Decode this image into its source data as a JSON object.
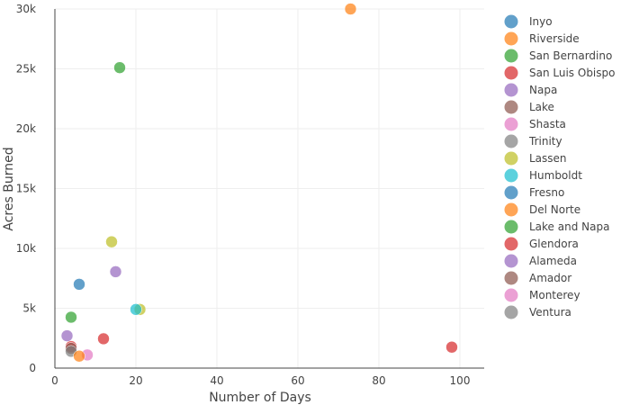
{
  "chart_data": {
    "type": "scatter",
    "xlabel": "Number of Days",
    "ylabel": "Acres Burned",
    "xlim": [
      -3,
      106
    ],
    "ylim": [
      0,
      30000
    ],
    "x_ticks": [
      0,
      20,
      40,
      60,
      80,
      100
    ],
    "y_ticks": [
      0,
      5000,
      10000,
      15000,
      20000,
      25000,
      30000
    ],
    "x_tick_labels": [
      "0",
      "20",
      "40",
      "60",
      "80",
      "100"
    ],
    "y_tick_labels": [
      "0",
      "5k",
      "10k",
      "15k",
      "20k",
      "25k",
      "30k"
    ],
    "grid": true,
    "legend_position": "right",
    "series": [
      {
        "name": "Inyo",
        "color": "#1f77b4",
        "points": [
          [
            6,
            7000
          ]
        ]
      },
      {
        "name": "Riverside",
        "color": "#ff7f0e",
        "points": [
          [
            73,
            30000
          ]
        ]
      },
      {
        "name": "San Bernardino",
        "color": "#2ca02c",
        "points": [
          [
            16,
            25100
          ]
        ]
      },
      {
        "name": "San Luis Obispo",
        "color": "#d62728",
        "points": [
          [
            4,
            1800
          ]
        ]
      },
      {
        "name": "Napa",
        "color": "#9467bd",
        "points": [
          [
            15,
            8050
          ]
        ]
      },
      {
        "name": "Lake",
        "color": "#8c564b",
        "points": [
          [
            4,
            1650
          ]
        ]
      },
      {
        "name": "Shasta",
        "color": "#e377c2",
        "points": [
          [
            8,
            1100
          ]
        ]
      },
      {
        "name": "Trinity",
        "color": "#7f7f7f",
        "points": [
          [
            4,
            1400
          ]
        ]
      },
      {
        "name": "Lassen",
        "color": "#bcbd22",
        "points": [
          [
            14,
            10550
          ],
          [
            21,
            4900
          ]
        ]
      },
      {
        "name": "Humboldt",
        "color": "#17becf",
        "points": [
          [
            20,
            4900
          ]
        ]
      },
      {
        "name": "Fresno",
        "color": "#1f77b4",
        "points": []
      },
      {
        "name": "Del Norte",
        "color": "#ff7f0e",
        "points": [
          [
            6,
            1000
          ]
        ]
      },
      {
        "name": "Lake and Napa",
        "color": "#2ca02c",
        "points": [
          [
            4,
            4250
          ]
        ]
      },
      {
        "name": "Glendora",
        "color": "#d62728",
        "points": [
          [
            12,
            2450
          ],
          [
            98,
            1750
          ]
        ]
      },
      {
        "name": "Alameda",
        "color": "#9467bd",
        "points": [
          [
            3,
            2700
          ]
        ]
      },
      {
        "name": "Amador",
        "color": "#8c564b",
        "points": []
      },
      {
        "name": "Monterey",
        "color": "#e377c2",
        "points": []
      },
      {
        "name": "Ventura",
        "color": "#7f7f7f",
        "points": []
      }
    ]
  }
}
